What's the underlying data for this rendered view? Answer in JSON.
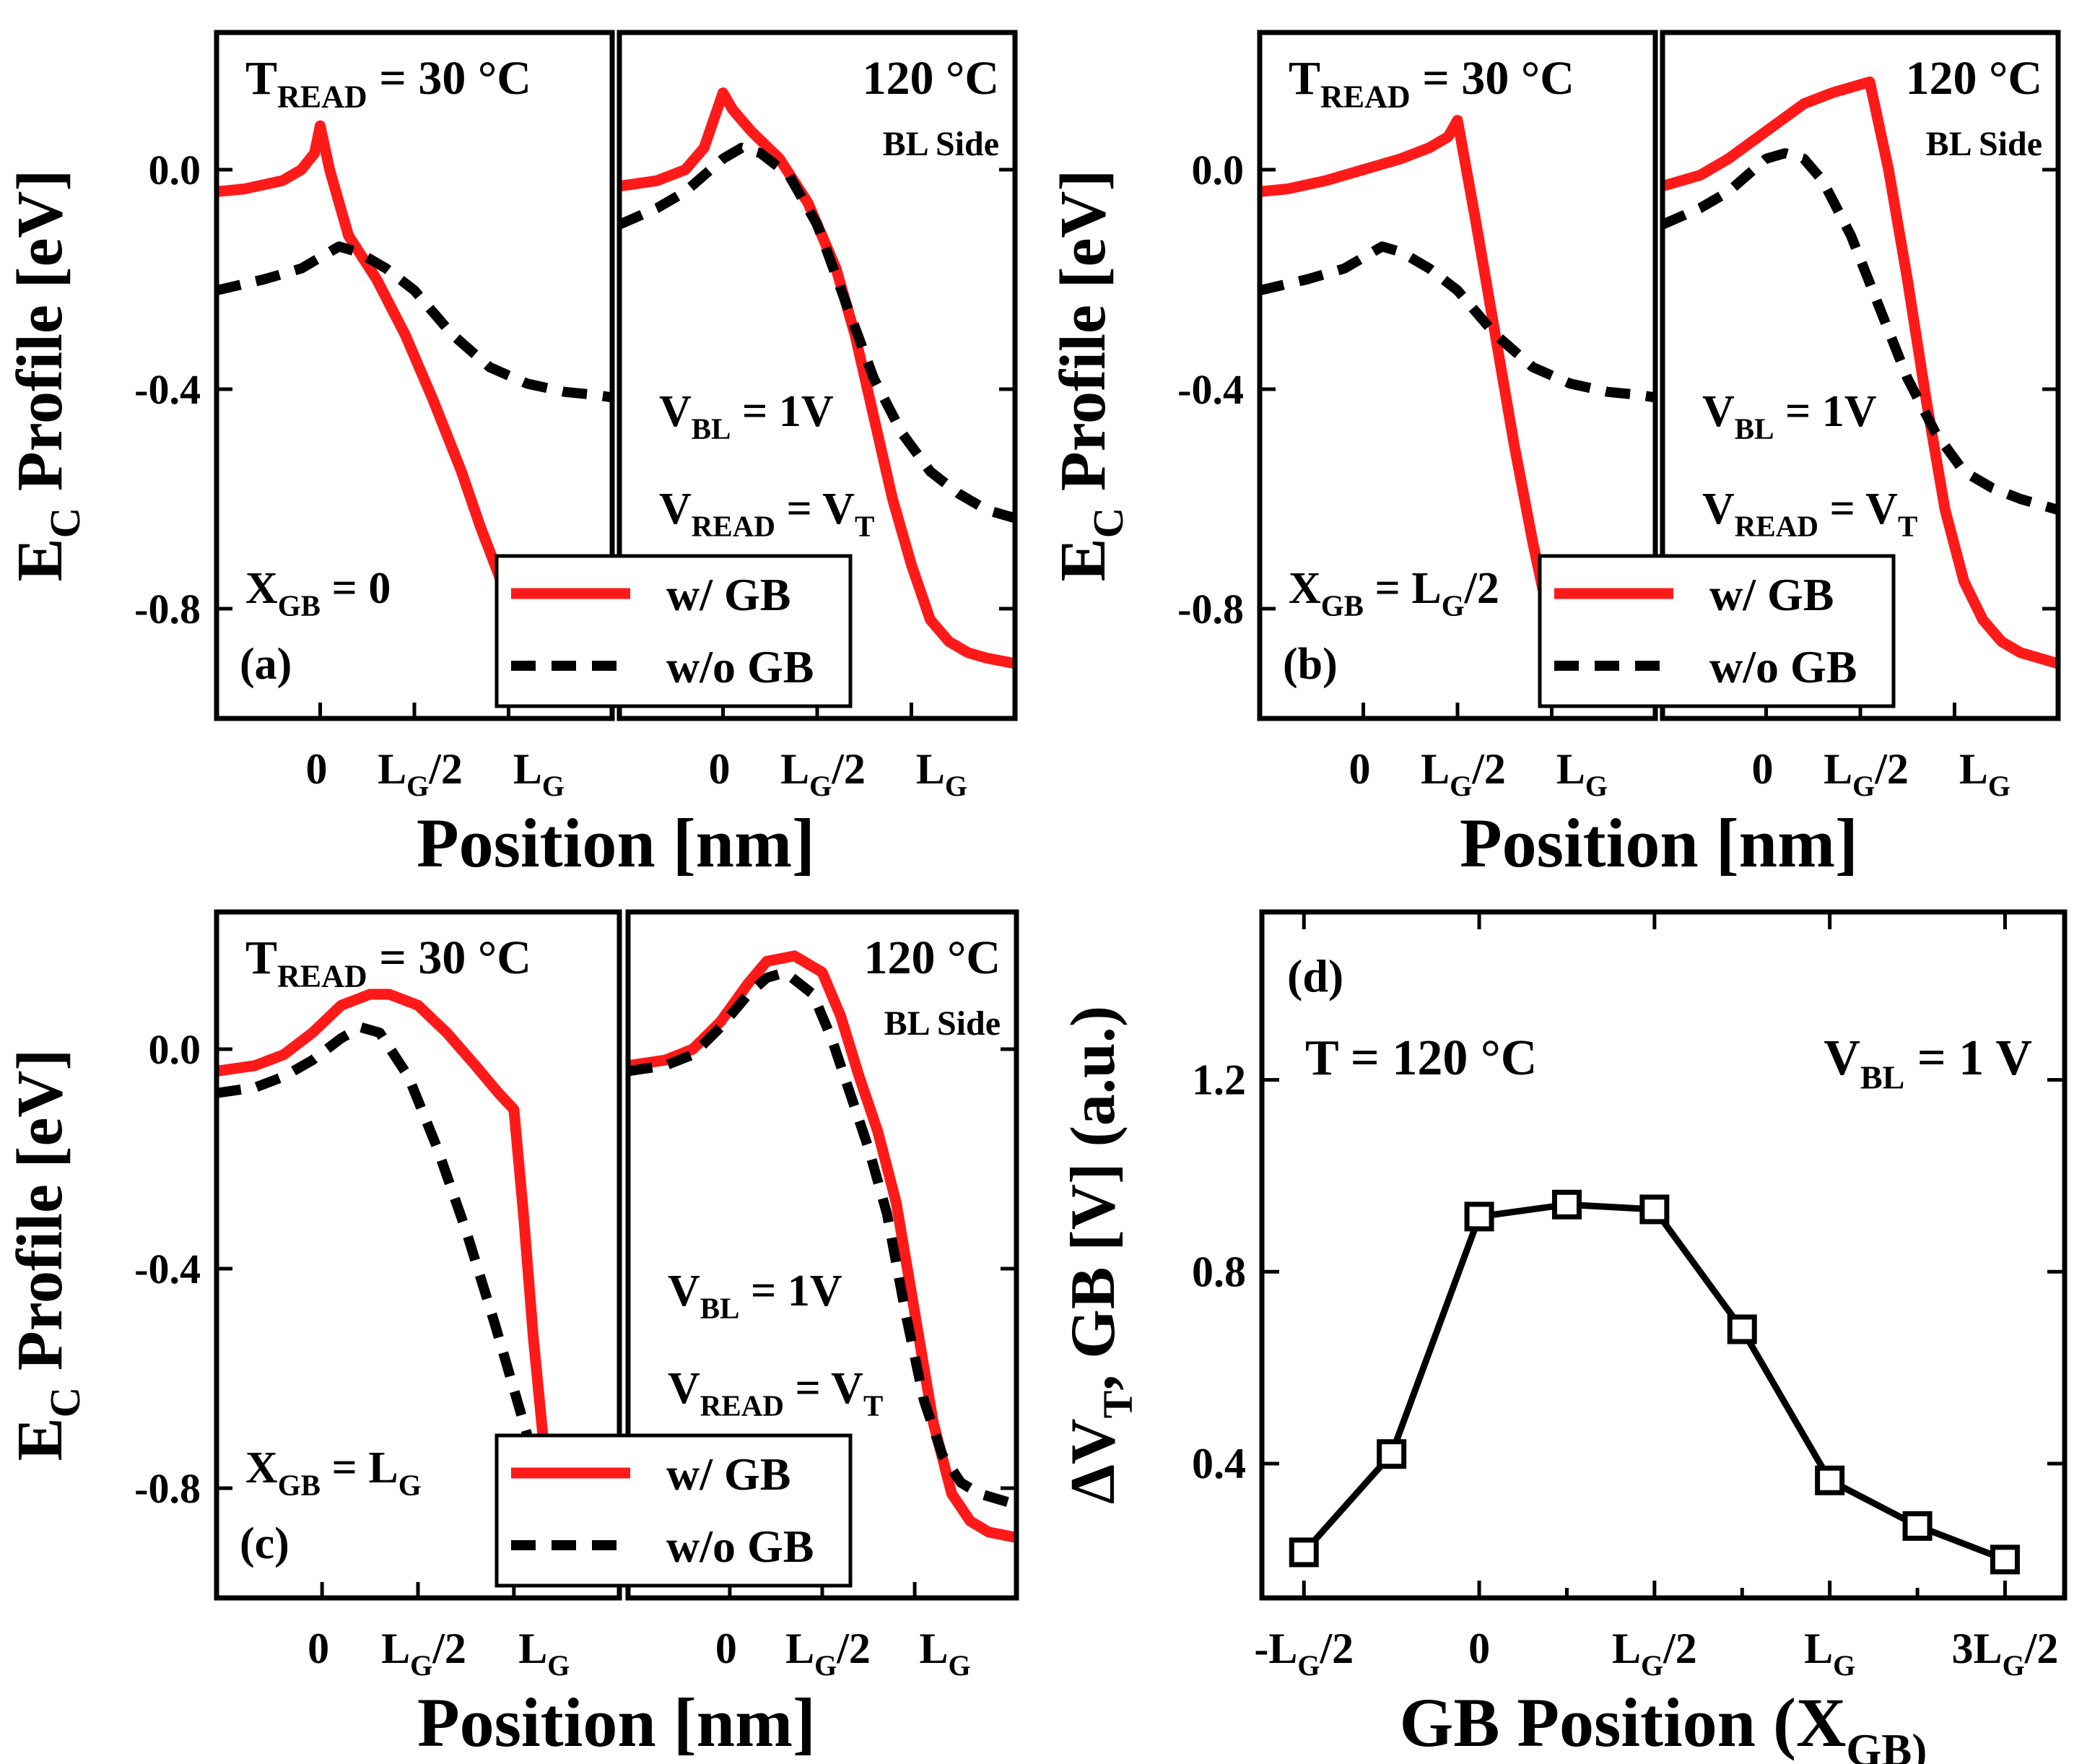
{
  "colors": {
    "with_gb": "#ff1a1a",
    "without_gb": "#000000",
    "marker_fill": "#ffffff",
    "axis": "#000000"
  },
  "common": {
    "ylabel": "E_C Profile [eV]",
    "xlabel": "Position [nm]",
    "temp_left": "T_READ = 30 °C",
    "temp_right": "120 °C",
    "bl_side": "BL Side",
    "vbl": "V_BL = 1V",
    "vread": "V_READ = V_T",
    "legend_with": "w/   GB",
    "legend_without": "w/o GB",
    "x_ticks": [
      "0",
      "L_G/2",
      "L_G"
    ],
    "y_ticks": [
      "0.0",
      "-0.4",
      "-0.8"
    ]
  },
  "chart_data": [
    {
      "id": "a",
      "type": "line",
      "panel_label": "(a)",
      "condition": "X_GB = 0",
      "xlabel": "Position [nm]",
      "ylabel": "E_C Profile [eV]",
      "xlim": [
        -0.55,
        1.55
      ],
      "ylim": [
        -1.0,
        0.25
      ],
      "x_tick_values": [
        0,
        0.5,
        1.0
      ],
      "y_tick_values": [
        0.0,
        -0.4,
        -0.8
      ],
      "subplots": [
        {
          "temperature": "30 °C",
          "series": [
            {
              "name": "w/   GB",
              "x": [
                -0.55,
                -0.4,
                -0.2,
                -0.1,
                -0.03,
                0,
                0.05,
                0.15,
                0.3,
                0.45,
                0.6,
                0.75,
                0.85,
                0.95,
                1.05,
                1.1
              ],
              "y": [
                -0.04,
                -0.035,
                -0.02,
                0.0,
                0.03,
                0.08,
                0.0,
                -0.12,
                -0.2,
                -0.3,
                -0.42,
                -0.55,
                -0.65,
                -0.74,
                -0.85,
                -0.9
              ]
            },
            {
              "name": "w/o GB",
              "x": [
                -0.55,
                -0.3,
                -0.1,
                0,
                0.1,
                0.2,
                0.35,
                0.5,
                0.7,
                0.9,
                1.1,
                1.3,
                1.45,
                1.55
              ],
              "y": [
                -0.22,
                -0.2,
                -0.18,
                -0.16,
                -0.14,
                -0.15,
                -0.18,
                -0.22,
                -0.3,
                -0.36,
                -0.39,
                -0.405,
                -0.41,
                -0.415
              ]
            }
          ]
        },
        {
          "temperature": "120 °C",
          "series": [
            {
              "name": "w/   GB",
              "x": [
                -0.55,
                -0.35,
                -0.2,
                -0.1,
                0,
                0.05,
                0.15,
                0.3,
                0.45,
                0.6,
                0.7,
                0.8,
                0.9,
                1.0,
                1.1,
                1.2,
                1.3,
                1.4,
                1.55
              ],
              "y": [
                -0.03,
                -0.02,
                0.0,
                0.04,
                0.14,
                0.11,
                0.07,
                0.02,
                -0.06,
                -0.18,
                -0.3,
                -0.45,
                -0.6,
                -0.72,
                -0.82,
                -0.86,
                -0.88,
                -0.89,
                -0.9
              ]
            },
            {
              "name": "w/o GB",
              "x": [
                -0.55,
                -0.35,
                -0.2,
                -0.1,
                0,
                0.1,
                0.2,
                0.35,
                0.5,
                0.65,
                0.8,
                0.95,
                1.1,
                1.25,
                1.4,
                1.55
              ],
              "y": [
                -0.1,
                -0.07,
                -0.04,
                -0.01,
                0.02,
                0.04,
                0.03,
                -0.01,
                -0.1,
                -0.24,
                -0.38,
                -0.48,
                -0.55,
                -0.59,
                -0.62,
                -0.635
              ]
            }
          ]
        }
      ]
    },
    {
      "id": "b",
      "type": "line",
      "panel_label": "(b)",
      "condition": "X_GB = L_G/2",
      "xlabel": "Position [nm]",
      "ylabel": "E_C Profile [eV]",
      "xlim": [
        -0.55,
        1.55
      ],
      "ylim": [
        -1.0,
        0.25
      ],
      "x_tick_values": [
        0,
        0.5,
        1.0
      ],
      "y_tick_values": [
        0.0,
        -0.4,
        -0.8
      ],
      "subplots": [
        {
          "temperature": "30 °C",
          "series": [
            {
              "name": "w/   GB",
              "x": [
                -0.55,
                -0.4,
                -0.2,
                0,
                0.2,
                0.35,
                0.45,
                0.5,
                0.6,
                0.7,
                0.8,
                0.9,
                0.95,
                1.0,
                1.05
              ],
              "y": [
                -0.04,
                -0.035,
                -0.02,
                0.0,
                0.02,
                0.04,
                0.06,
                0.09,
                -0.1,
                -0.3,
                -0.5,
                -0.68,
                -0.76,
                -0.83,
                -0.9
              ]
            },
            {
              "name": "w/o GB",
              "x": [
                -0.55,
                -0.3,
                -0.1,
                0,
                0.1,
                0.2,
                0.35,
                0.5,
                0.7,
                0.9,
                1.1,
                1.3,
                1.45,
                1.55
              ],
              "y": [
                -0.22,
                -0.2,
                -0.18,
                -0.16,
                -0.14,
                -0.15,
                -0.18,
                -0.22,
                -0.3,
                -0.36,
                -0.39,
                -0.405,
                -0.41,
                -0.415
              ]
            }
          ]
        },
        {
          "temperature": "120 °C",
          "series": [
            {
              "name": "w/   GB",
              "x": [
                -0.55,
                -0.35,
                -0.2,
                0,
                0.2,
                0.35,
                0.45,
                0.55,
                0.65,
                0.75,
                0.85,
                0.95,
                1.05,
                1.15,
                1.25,
                1.35,
                1.45,
                1.55
              ],
              "y": [
                -0.03,
                -0.01,
                0.02,
                0.07,
                0.12,
                0.14,
                0.15,
                0.16,
                0.0,
                -0.2,
                -0.42,
                -0.62,
                -0.75,
                -0.82,
                -0.86,
                -0.88,
                -0.89,
                -0.9
              ]
            },
            {
              "name": "w/o GB",
              "x": [
                -0.55,
                -0.35,
                -0.2,
                -0.1,
                0,
                0.1,
                0.2,
                0.3,
                0.45,
                0.6,
                0.75,
                0.9,
                1.05,
                1.2,
                1.35,
                1.45,
                1.55
              ],
              "y": [
                -0.1,
                -0.07,
                -0.04,
                -0.01,
                0.02,
                0.03,
                0.02,
                -0.02,
                -0.12,
                -0.25,
                -0.38,
                -0.48,
                -0.55,
                -0.58,
                -0.6,
                -0.61,
                -0.62
              ]
            }
          ]
        }
      ]
    },
    {
      "id": "c",
      "type": "line",
      "panel_label": "(c)",
      "condition": "X_GB = L_G",
      "xlabel": "Position [nm]",
      "ylabel": "E_C Profile [eV]",
      "xlim": [
        -0.55,
        1.55
      ],
      "ylim": [
        -1.0,
        0.25
      ],
      "x_tick_values": [
        0,
        0.5,
        1.0
      ],
      "y_tick_values": [
        0.0,
        -0.4,
        -0.8
      ],
      "subplots": [
        {
          "temperature": "30 °C",
          "series": [
            {
              "name": "w/   GB",
              "x": [
                -0.55,
                -0.35,
                -0.2,
                -0.05,
                0.1,
                0.25,
                0.35,
                0.5,
                0.65,
                0.8,
                0.92,
                1.0,
                1.05,
                1.1,
                1.15,
                1.2
              ],
              "y": [
                -0.04,
                -0.03,
                -0.01,
                0.03,
                0.08,
                0.1,
                0.1,
                0.08,
                0.03,
                -0.03,
                -0.08,
                -0.11,
                -0.3,
                -0.52,
                -0.7,
                -0.85
              ]
            },
            {
              "name": "w/o GB",
              "x": [
                -0.55,
                -0.35,
                -0.2,
                -0.05,
                0.1,
                0.2,
                0.3,
                0.45,
                0.6,
                0.75,
                0.9,
                1.0,
                1.1,
                1.15
              ],
              "y": [
                -0.08,
                -0.07,
                -0.05,
                -0.02,
                0.02,
                0.04,
                0.03,
                -0.05,
                -0.18,
                -0.33,
                -0.5,
                -0.62,
                -0.74,
                -0.8
              ]
            }
          ]
        },
        {
          "temperature": "120 °C",
          "series": [
            {
              "name": "w/   GB",
              "x": [
                -0.55,
                -0.35,
                -0.2,
                -0.05,
                0.1,
                0.2,
                0.35,
                0.5,
                0.6,
                0.7,
                0.8,
                0.9,
                1.0,
                1.1,
                1.2,
                1.3,
                1.4,
                1.55
              ],
              "y": [
                -0.03,
                -0.02,
                0.0,
                0.05,
                0.12,
                0.16,
                0.17,
                0.14,
                0.06,
                -0.05,
                -0.15,
                -0.28,
                -0.48,
                -0.68,
                -0.81,
                -0.86,
                -0.88,
                -0.89
              ]
            },
            {
              "name": "w/o GB",
              "x": [
                -0.55,
                -0.35,
                -0.2,
                -0.05,
                0.1,
                0.2,
                0.3,
                0.45,
                0.55,
                0.65,
                0.75,
                0.85,
                0.95,
                1.05,
                1.15,
                1.25,
                1.35,
                1.45,
                1.55
              ],
              "y": [
                -0.04,
                -0.03,
                -0.01,
                0.04,
                0.1,
                0.13,
                0.14,
                0.1,
                0.02,
                -0.08,
                -0.18,
                -0.3,
                -0.48,
                -0.64,
                -0.74,
                -0.79,
                -0.81,
                -0.82,
                -0.83
              ]
            }
          ]
        }
      ]
    },
    {
      "id": "d",
      "type": "line",
      "panel_label": "(d)",
      "annotation_left": "T = 120 °C",
      "annotation_right": "V_BL = 1 V",
      "xlabel": "GB Position (X_GB)",
      "ylabel": "ΔV_T, GB [V] (a.u.)",
      "x_tick_labels": [
        "-L_G/2",
        "0",
        "L_G/2",
        "L_G",
        "3L_G/2"
      ],
      "x_tick_values": [
        -0.5,
        0,
        0.5,
        1.0,
        1.5
      ],
      "y_tick_labels": [
        "0.4",
        "0.8",
        "1.2"
      ],
      "y_tick_values": [
        0.4,
        0.8,
        1.2
      ],
      "xlim": [
        -0.62,
        1.67
      ],
      "ylim": [
        0.12,
        1.55
      ],
      "series": [
        {
          "name": "",
          "x": [
            -0.5,
            -0.25,
            0.0,
            0.25,
            0.5,
            0.75,
            1.0,
            1.25,
            1.5
          ],
          "y": [
            0.215,
            0.42,
            0.915,
            0.94,
            0.93,
            0.68,
            0.365,
            0.27,
            0.2
          ]
        }
      ]
    }
  ]
}
